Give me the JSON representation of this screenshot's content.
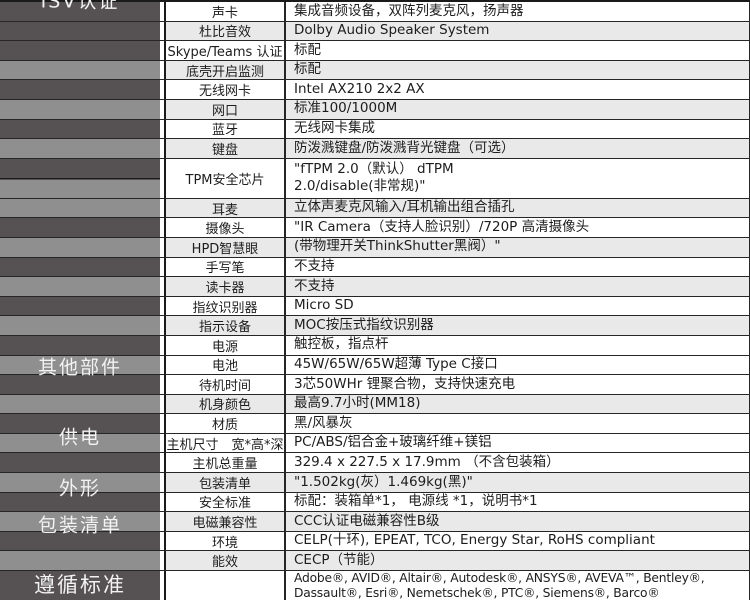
{
  "colors": {
    "ribbon_dark": "#565152",
    "ribbon_light": "#8f8f8f",
    "row_shade": "#e9e9e9",
    "border": "#262626",
    "category_text": "#f2f2f2"
  },
  "categories": [
    {
      "label": "其他部件"
    },
    {
      "label": "供电"
    },
    {
      "label": "外形"
    },
    {
      "label": "包装清单"
    },
    {
      "label": "遵循标准"
    },
    {
      "label": "ISV认证"
    }
  ],
  "table": {
    "rows": [
      {
        "name": "声卡",
        "value": "集成音频设备，双阵列麦克风，扬声器"
      },
      {
        "name": "杜比音效",
        "value": "Dolby Audio Speaker System"
      },
      {
        "name": "Skype/Teams 认证",
        "value": "标配"
      },
      {
        "name": "底壳开启监测",
        "value": "标配"
      },
      {
        "name": "无线网卡",
        "value": "Intel AX210 2x2 AX"
      },
      {
        "name": "网口",
        "value": "标准100/1000M"
      },
      {
        "name": "蓝牙",
        "value": "无线网卡集成"
      },
      {
        "name": "键盘",
        "value": "防泼溅键盘/防泼溅背光键盘（可选）"
      },
      {
        "name": "TPM安全芯片",
        "value": "\"fTPM 2.0（默认） dTPM\n2.0/disable(非常规)\""
      },
      {
        "name": "耳麦",
        "value": "立体声麦克风输入/耳机输出组合插孔"
      },
      {
        "name": "摄像头",
        "value": "\"IR Camera（支持人脸识别）/720P 高清摄像头"
      },
      {
        "name": "HPD智慧眼",
        "value": "(带物理开关ThinkShutter黑阀）\""
      },
      {
        "name": "手写笔",
        "value": "不支持"
      },
      {
        "name": "读卡器",
        "value": "不支持"
      },
      {
        "name": "指纹识别器",
        "value": "Micro SD"
      },
      {
        "name": "指示设备",
        "value": "MOC按压式指纹识别器"
      },
      {
        "name": "电源",
        "value": "触控板，指点杆"
      },
      {
        "name": "电池",
        "value": "45W/65W/65W超薄 Type C接口"
      },
      {
        "name": "待机时间",
        "value": "3芯50WHr 锂聚合物，支持快速充电"
      },
      {
        "name": "机身颜色",
        "value": "最高9.7小时(MM18)"
      },
      {
        "name": "材质",
        "value": "黑/风暴灰"
      },
      {
        "name": "主机尺寸　宽*高*深",
        "value": "PC/ABS/铝合金+玻璃纤维+镁铝"
      },
      {
        "name": "主机总重量",
        "value": "329.4 x 227.5 x 17.9mm （不含包装箱）"
      },
      {
        "name": "包装清单",
        "value": "\"1.502kg(灰）1.469kg(黑)\""
      },
      {
        "name": "安全标准",
        "value": "标配：装箱单*1， 电源线 *1，说明书*1"
      },
      {
        "name": "电磁兼容性",
        "value": "CCC认证电磁兼容性B级"
      },
      {
        "name": "环境",
        "value": "CELP(十环), EPEAT, TCO, Energy Star, RoHS compliant"
      },
      {
        "name": "能效",
        "value": "CECP（节能）"
      },
      {
        "name": "",
        "value": "Adobe®, AVID®, Altair®, Autodesk®, ANSYS®, AVEVA™, Bentley®,\nDassault®, Esri®, Nemetschek®, PTC®, Siemens®, Barco®"
      }
    ]
  }
}
